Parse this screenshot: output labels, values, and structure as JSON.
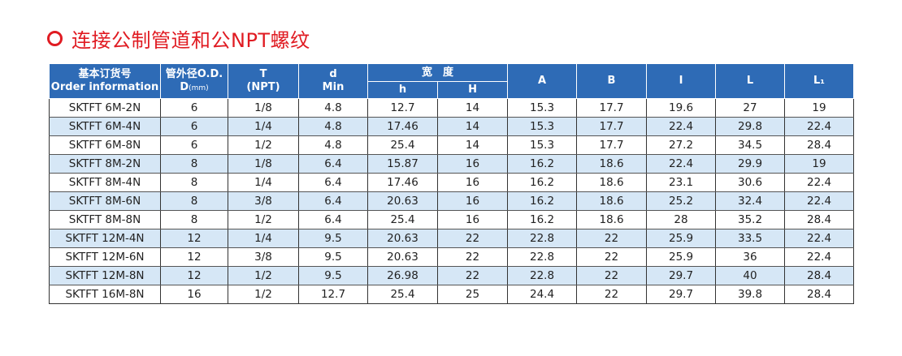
{
  "title": "连接公制管道和公NPT螺纹",
  "header": {
    "order_cn": "基本订货号",
    "order_en": "Order information",
    "od_cn": "管外径O.D.",
    "od_unit_d": "D",
    "od_unit_mm": "(mm)",
    "t": "T",
    "t_sub": "(NPT)",
    "d": "d",
    "d_sub": "Min",
    "width": "宽　度",
    "h_small": "h",
    "h_big": "H",
    "a": "A",
    "b": "B",
    "i": "I",
    "l": "L",
    "l1": "L₁"
  },
  "rows": [
    {
      "order": "SKTFT 6M-2N",
      "od": "6",
      "t": "1/8",
      "d": "4.8",
      "h": "12.7",
      "H": "14",
      "a": "15.3",
      "b": "17.7",
      "i": "19.6",
      "l": "27",
      "l1": "19"
    },
    {
      "order": "SKTFT 6M-4N",
      "od": "6",
      "t": "1/4",
      "d": "4.8",
      "h": "17.46",
      "H": "14",
      "a": "15.3",
      "b": "17.7",
      "i": "22.4",
      "l": "29.8",
      "l1": "22.4"
    },
    {
      "order": "SKTFT 6M-8N",
      "od": "6",
      "t": "1/2",
      "d": "4.8",
      "h": "25.4",
      "H": "14",
      "a": "15.3",
      "b": "17.7",
      "i": "27.2",
      "l": "34.5",
      "l1": "28.4"
    },
    {
      "order": "SKTFT 8M-2N",
      "od": "8",
      "t": "1/8",
      "d": "6.4",
      "h": "15.87",
      "H": "16",
      "a": "16.2",
      "b": "18.6",
      "i": "22.4",
      "l": "29.9",
      "l1": "19"
    },
    {
      "order": "SKTFT 8M-4N",
      "od": "8",
      "t": "1/4",
      "d": "6.4",
      "h": "17.46",
      "H": "16",
      "a": "16.2",
      "b": "18.6",
      "i": "23.1",
      "l": "30.6",
      "l1": "22.4"
    },
    {
      "order": "SKTFT 8M-6N",
      "od": "8",
      "t": "3/8",
      "d": "6.4",
      "h": "20.63",
      "H": "16",
      "a": "16.2",
      "b": "18.6",
      "i": "25.2",
      "l": "32.4",
      "l1": "22.4"
    },
    {
      "order": "SKTFT 8M-8N",
      "od": "8",
      "t": "1/2",
      "d": "6.4",
      "h": "25.4",
      "H": "16",
      "a": "16.2",
      "b": "18.6",
      "i": "28",
      "l": "35.2",
      "l1": "28.4"
    },
    {
      "order": "SKTFT 12M-4N",
      "od": "12",
      "t": "1/4",
      "d": "9.5",
      "h": "20.63",
      "H": "22",
      "a": "22.8",
      "b": "22",
      "i": "25.9",
      "l": "33.5",
      "l1": "22.4"
    },
    {
      "order": "SKTFT 12M-6N",
      "od": "12",
      "t": "3/8",
      "d": "9.5",
      "h": "20.63",
      "H": "22",
      "a": "22.8",
      "b": "22",
      "i": "25.9",
      "l": "36",
      "l1": "22.4"
    },
    {
      "order": "SKTFT 12M-8N",
      "od": "12",
      "t": "1/2",
      "d": "9.5",
      "h": "26.98",
      "H": "22",
      "a": "22.8",
      "b": "22",
      "i": "29.7",
      "l": "40",
      "l1": "28.4"
    },
    {
      "order": "SKTFT 16M-8N",
      "od": "16",
      "t": "1/2",
      "d": "12.7",
      "h": "25.4",
      "H": "25",
      "a": "24.4",
      "b": "22",
      "i": "29.7",
      "l": "39.8",
      "l1": "28.4"
    }
  ],
  "colors": {
    "title_red": "#e01b22",
    "header_blue": "#2e6bb6",
    "stripe_blue": "#d6e7f6"
  }
}
